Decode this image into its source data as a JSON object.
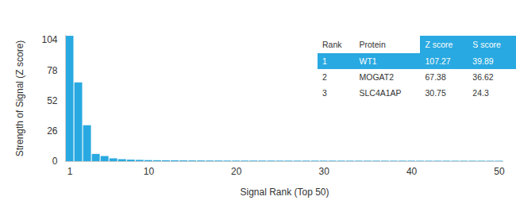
{
  "chart_data": {
    "type": "bar",
    "xlabel": "Signal Rank (Top 50)",
    "ylabel": "Strength of Signal (Z score)",
    "x": [
      1,
      2,
      3,
      4,
      5,
      6,
      7,
      8,
      9,
      10,
      11,
      12,
      13,
      14,
      15,
      16,
      17,
      18,
      19,
      20,
      21,
      22,
      23,
      24,
      25,
      26,
      27,
      28,
      29,
      30,
      31,
      32,
      33,
      34,
      35,
      36,
      37,
      38,
      39,
      40,
      41,
      42,
      43,
      44,
      45,
      46,
      47,
      48,
      49,
      50
    ],
    "values": [
      107.27,
      67.38,
      30.75,
      6.2,
      4.4,
      2.4,
      1.7,
      1.3,
      1.1,
      0.9,
      0.8,
      0.75,
      0.7,
      0.65,
      0.6,
      0.6,
      0.55,
      0.55,
      0.5,
      0.5,
      0.5,
      0.5,
      0.48,
      0.48,
      0.46,
      0.46,
      0.45,
      0.45,
      0.44,
      0.44,
      0.43,
      0.43,
      0.42,
      0.42,
      0.41,
      0.41,
      0.4,
      0.4,
      0.4,
      0.4,
      0.39,
      0.39,
      0.38,
      0.38,
      0.37,
      0.37,
      0.36,
      0.36,
      0.35,
      0.35
    ],
    "color": "#29a9e1",
    "xlim": [
      0.5,
      50.5
    ],
    "xticks": [
      1,
      10,
      20,
      30,
      40,
      50
    ],
    "ylim": [
      0,
      108
    ],
    "yticks": [
      0,
      26,
      52,
      78,
      104
    ],
    "grid": false,
    "table": {
      "columns": [
        "Rank",
        "Protein",
        "Z score",
        "S score"
      ],
      "rows": [
        [
          1,
          "WT1",
          107.27,
          39.89
        ],
        [
          2,
          "MOGAT2",
          67.38,
          36.62
        ],
        [
          3,
          "SLC4A1AP",
          30.75,
          24.3
        ]
      ]
    }
  }
}
